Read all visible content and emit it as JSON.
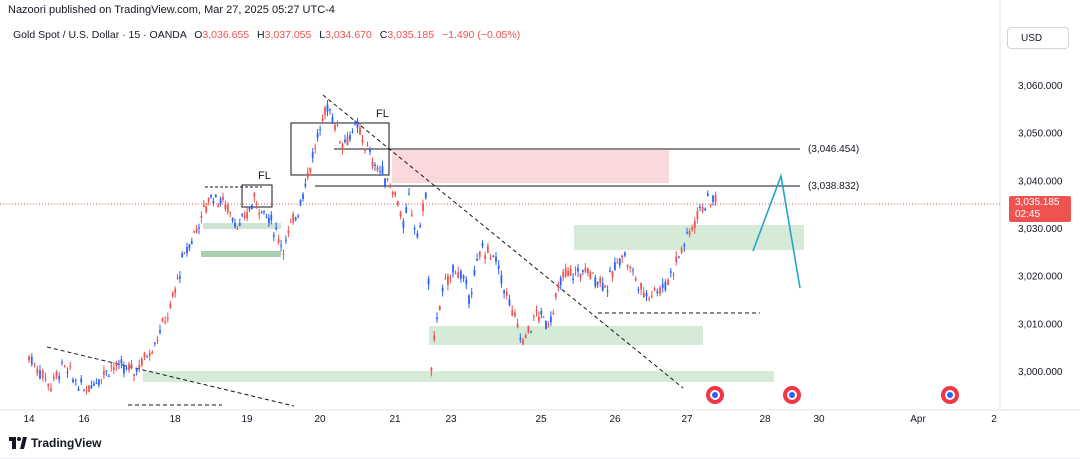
{
  "header": {
    "publisher_line": "Nazoori published on TradingView.com, Mar 27, 2025 05:27 UTC-4",
    "symbol": "Gold Spot / U.S. Dollar · 15 · OANDA",
    "open_label": "O",
    "open": "3,036.655",
    "high_label": "H",
    "high": "3,037.055",
    "low_label": "L",
    "low": "3,034.670",
    "close_label": "C",
    "close": "3,035.185",
    "change": "−1.490 (−0.05%)"
  },
  "currency_button": "USD",
  "price_tag": {
    "price": "3,035.185",
    "countdown": "02:45"
  },
  "brand": "TradingView",
  "chart_data": {
    "type": "line",
    "title": "",
    "y_axis_ticks": [
      "3,060.000",
      "3,050.000",
      "3,040.000",
      "3,030.000",
      "3,020.000",
      "3,010.000",
      "3,000.000"
    ],
    "y_axis_values": [
      3060,
      3050,
      3040,
      3030,
      3020,
      3010,
      3000
    ],
    "ylim": [
      2996.5,
      3072
    ],
    "x_axis_ticks": [
      "14",
      "16",
      "18",
      "19",
      "20",
      "21",
      "23",
      "25",
      "26",
      "27",
      "28",
      "30",
      "Apr",
      "2"
    ],
    "series": [
      {
        "values": [
          [
            14,
            3003
          ],
          [
            14.8,
            2997
          ],
          [
            15.2,
            3001
          ],
          [
            16,
            2996
          ],
          [
            16.6,
            3001
          ],
          [
            17.1,
            3000
          ],
          [
            17.5,
            3005
          ],
          [
            17.9,
            3013
          ],
          [
            18.1,
            3023
          ],
          [
            18.3,
            3030
          ],
          [
            18.5,
            3037
          ],
          [
            18.7,
            3035
          ],
          [
            18.9,
            3030
          ],
          [
            19.1,
            3036
          ],
          [
            19.3,
            3032
          ],
          [
            19.5,
            3026
          ],
          [
            19.7,
            3034
          ],
          [
            19.9,
            3045
          ],
          [
            20.1,
            3056
          ],
          [
            20.3,
            3048
          ],
          [
            20.5,
            3051
          ],
          [
            20.7,
            3044
          ],
          [
            20.9,
            3040
          ],
          [
            21.1,
            3036
          ],
          [
            21.3,
            3030
          ],
          [
            21.5,
            3036
          ],
          [
            21.8,
            3028
          ],
          [
            22.1,
            3037
          ],
          [
            22.3,
            3000
          ],
          [
            22.5,
            3012
          ],
          [
            22.8,
            3018
          ],
          [
            23.1,
            3022
          ],
          [
            23.4,
            3016
          ],
          [
            23.7,
            3026
          ],
          [
            24.0,
            3023
          ],
          [
            24.3,
            3014
          ],
          [
            24.6,
            3006
          ],
          [
            24.9,
            3012
          ],
          [
            25.1,
            3010
          ],
          [
            25.3,
            3020
          ],
          [
            25.6,
            3021
          ],
          [
            25.9,
            3018
          ],
          [
            26.1,
            3025
          ],
          [
            26.4,
            3016
          ],
          [
            26.7,
            3018
          ],
          [
            27.0,
            3028
          ],
          [
            27.2,
            3035
          ],
          [
            27.4,
            3036
          ]
        ]
      }
    ],
    "horizontal_levels": [
      {
        "price": 3046.454,
        "label": "(3,046.454)"
      },
      {
        "price": 3038.832,
        "label": "(3,038.832)"
      }
    ],
    "annotations": [
      "FL",
      "FL"
    ],
    "grid": false
  },
  "colors": {
    "up": "#089981",
    "down": "#f23645",
    "candle_up": "#2962ff",
    "candle_down": "#ef5350",
    "zone_green": "#d6ead8",
    "zone_red": "#fbd8dc",
    "projection": "#26a5c9"
  }
}
